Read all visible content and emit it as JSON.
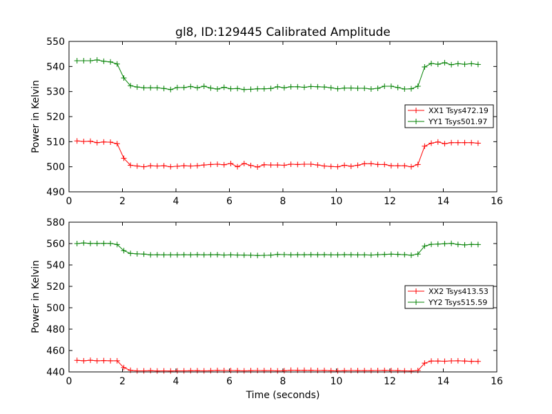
{
  "chart_data": [
    {
      "type": "line",
      "title": "gl8, ID:129445 Calibrated Amplitude",
      "xlabel": "",
      "ylabel": "Power in Kelvin",
      "xlim": [
        0,
        16
      ],
      "ylim": [
        490,
        550
      ],
      "xticks": [
        "0",
        "2",
        "4",
        "6",
        "8",
        "10",
        "12",
        "14",
        "16"
      ],
      "yticks": [
        "490",
        "500",
        "510",
        "520",
        "530",
        "540",
        "550"
      ],
      "legend_position": "right",
      "x": [
        0.3,
        0.55,
        0.8,
        1.05,
        1.3,
        1.55,
        1.8,
        2.05,
        2.3,
        2.55,
        2.8,
        3.05,
        3.3,
        3.55,
        3.8,
        4.05,
        4.3,
        4.55,
        4.8,
        5.05,
        5.3,
        5.55,
        5.8,
        6.05,
        6.3,
        6.55,
        6.8,
        7.05,
        7.3,
        7.55,
        7.8,
        8.05,
        8.3,
        8.55,
        8.8,
        9.05,
        9.3,
        9.55,
        9.8,
        10.05,
        10.3,
        10.55,
        10.8,
        11.05,
        11.3,
        11.55,
        11.8,
        12.05,
        12.3,
        12.55,
        12.8,
        13.05,
        13.3,
        13.55,
        13.8,
        14.05,
        14.3,
        14.55,
        14.8,
        15.05,
        15.3
      ],
      "series": [
        {
          "name": "XX1 Tsys472.19",
          "color": "#ff0000",
          "values": [
            510.3,
            510.1,
            510.2,
            509.6,
            509.9,
            509.8,
            509.2,
            503.4,
            500.6,
            500.3,
            500.0,
            500.4,
            500.3,
            500.4,
            500.0,
            500.2,
            500.4,
            500.3,
            500.4,
            500.7,
            500.9,
            501.0,
            500.8,
            501.3,
            500.0,
            501.3,
            500.5,
            499.9,
            500.8,
            500.7,
            500.7,
            500.6,
            501.0,
            500.9,
            501.0,
            501.0,
            500.7,
            500.3,
            500.1,
            500.0,
            500.6,
            500.2,
            500.6,
            501.2,
            501.2,
            500.9,
            500.9,
            500.4,
            500.4,
            500.4,
            500.0,
            500.9,
            508.2,
            509.4,
            509.9,
            509.2,
            509.6,
            509.6,
            509.6,
            509.6,
            509.4
          ]
        },
        {
          "name": "YY1 Tsys501.97",
          "color": "#008000",
          "values": [
            542.3,
            542.3,
            542.3,
            542.6,
            542.1,
            541.8,
            541.0,
            535.4,
            532.3,
            531.8,
            531.5,
            531.5,
            531.5,
            531.2,
            530.8,
            531.6,
            531.6,
            532.0,
            531.5,
            532.1,
            531.4,
            531.0,
            531.7,
            531.1,
            531.2,
            530.8,
            530.9,
            531.1,
            531.1,
            531.2,
            531.9,
            531.5,
            531.9,
            531.9,
            531.7,
            532.0,
            531.9,
            531.8,
            531.5,
            531.1,
            531.4,
            531.4,
            531.3,
            531.3,
            531.0,
            531.3,
            532.1,
            532.1,
            531.6,
            531.0,
            531.1,
            532.1,
            539.8,
            541.2,
            540.9,
            541.5,
            540.7,
            541.1,
            540.9,
            541.1,
            540.8
          ]
        }
      ]
    },
    {
      "type": "line",
      "title": "",
      "xlabel": "Time (seconds)",
      "ylabel": "Power in Kelvin",
      "xlim": [
        0,
        16
      ],
      "ylim": [
        440,
        580
      ],
      "xticks": [
        "0",
        "2",
        "4",
        "6",
        "8",
        "10",
        "12",
        "14",
        "16"
      ],
      "yticks": [
        "440",
        "460",
        "480",
        "500",
        "520",
        "540",
        "560",
        "580"
      ],
      "legend_position": "right",
      "x": [
        0.3,
        0.55,
        0.8,
        1.05,
        1.3,
        1.55,
        1.8,
        2.05,
        2.3,
        2.55,
        2.8,
        3.05,
        3.3,
        3.55,
        3.8,
        4.05,
        4.3,
        4.55,
        4.8,
        5.05,
        5.3,
        5.55,
        5.8,
        6.05,
        6.3,
        6.55,
        6.8,
        7.05,
        7.3,
        7.55,
        7.8,
        8.05,
        8.3,
        8.55,
        8.8,
        9.05,
        9.3,
        9.55,
        9.8,
        10.05,
        10.3,
        10.55,
        10.8,
        11.05,
        11.3,
        11.55,
        11.8,
        12.05,
        12.3,
        12.55,
        12.8,
        13.05,
        13.3,
        13.55,
        13.8,
        14.05,
        14.3,
        14.55,
        14.8,
        15.05,
        15.3
      ],
      "series": [
        {
          "name": "XX2 Tsys413.53",
          "color": "#ff0000",
          "values": [
            450.8,
            450.4,
            450.9,
            450.4,
            450.6,
            450.4,
            450.4,
            444.0,
            441.5,
            441.0,
            441.0,
            441.2,
            440.9,
            441.0,
            440.9,
            441.0,
            441.0,
            441.1,
            441.1,
            441.0,
            441.1,
            441.4,
            441.3,
            441.3,
            441.2,
            441.0,
            441.2,
            441.3,
            441.2,
            441.3,
            441.0,
            441.1,
            441.6,
            441.5,
            441.5,
            441.5,
            441.3,
            441.4,
            441.1,
            441.0,
            441.1,
            441.3,
            441.2,
            441.2,
            441.2,
            441.3,
            441.4,
            441.3,
            441.2,
            441.0,
            440.9,
            441.3,
            448.2,
            450.2,
            450.2,
            450.0,
            450.3,
            450.4,
            450.2,
            449.9,
            449.8
          ]
        },
        {
          "name": "YY2 Tsys515.59",
          "color": "#008000",
          "values": [
            560.0,
            560.6,
            560.1,
            560.1,
            560.2,
            560.1,
            559.1,
            553.4,
            550.8,
            550.4,
            550.2,
            549.4,
            549.5,
            549.4,
            549.4,
            549.4,
            549.5,
            549.4,
            549.6,
            549.4,
            549.5,
            549.6,
            549.3,
            549.4,
            549.3,
            549.2,
            549.1,
            548.9,
            549.0,
            549.2,
            549.8,
            549.7,
            549.4,
            549.5,
            549.5,
            549.6,
            549.5,
            549.6,
            549.4,
            549.4,
            549.6,
            549.5,
            549.4,
            549.4,
            549.3,
            549.6,
            549.8,
            550.1,
            549.9,
            549.6,
            549.1,
            550.2,
            557.7,
            559.3,
            559.5,
            559.8,
            560.2,
            559.2,
            558.8,
            559.2,
            559.1
          ]
        }
      ]
    }
  ]
}
